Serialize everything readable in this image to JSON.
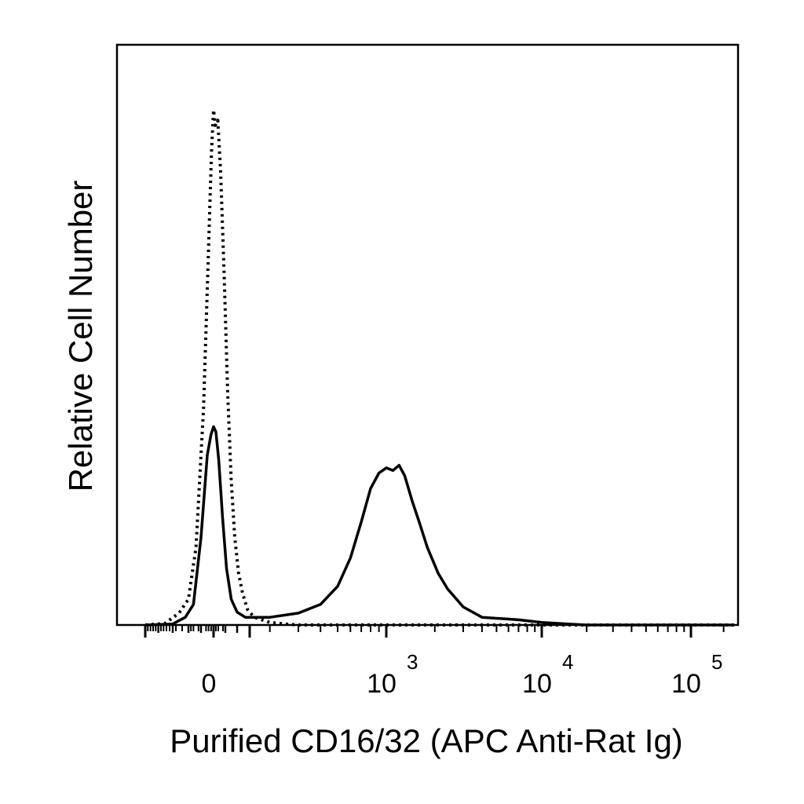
{
  "chart_data": {
    "type": "line",
    "xlabel": "Purified CD16/32 (APC Anti-Rat Ig)",
    "ylabel": "Relative Cell Number",
    "x_scale": "biexponential",
    "x_range": [
      -250,
      250000
    ],
    "y_range": [
      0,
      100
    ],
    "grid": false,
    "x_ticks": [
      {
        "base": "0",
        "exp": "",
        "value": 0
      },
      {
        "base": "10",
        "exp": "3",
        "value": 1000
      },
      {
        "base": "10",
        "exp": "4",
        "value": 10000
      },
      {
        "base": "10",
        "exp": "5",
        "value": 100000
      }
    ],
    "series": [
      {
        "style": "dotted",
        "color": "#000000",
        "points": [
          [
            -250,
            0
          ],
          [
            -175,
            0.3
          ],
          [
            -130,
            2.3
          ],
          [
            -100,
            5
          ],
          [
            -70,
            15
          ],
          [
            -40,
            42
          ],
          [
            -20,
            73
          ],
          [
            -8,
            92
          ],
          [
            0,
            100
          ],
          [
            8,
            97
          ],
          [
            18,
            98
          ],
          [
            30,
            88
          ],
          [
            45,
            68
          ],
          [
            60,
            45
          ],
          [
            75,
            28
          ],
          [
            90,
            17
          ],
          [
            105,
            10
          ],
          [
            120,
            6
          ],
          [
            140,
            3
          ],
          [
            160,
            1.5
          ],
          [
            200,
            0.5
          ],
          [
            250,
            0.2
          ],
          [
            300,
            0
          ],
          [
            1000,
            0
          ],
          [
            250000,
            0
          ]
        ]
      },
      {
        "style": "solid",
        "color": "#000000",
        "points": [
          [
            -250,
            0
          ],
          [
            -150,
            0.2
          ],
          [
            -110,
            1.5
          ],
          [
            -80,
            4
          ],
          [
            -50,
            17
          ],
          [
            -25,
            33
          ],
          [
            -10,
            37
          ],
          [
            0,
            38.5
          ],
          [
            10,
            37.5
          ],
          [
            22,
            32
          ],
          [
            38,
            21
          ],
          [
            55,
            11
          ],
          [
            75,
            5
          ],
          [
            100,
            2.5
          ],
          [
            130,
            1.5
          ],
          [
            200,
            1.5
          ],
          [
            300,
            2.3
          ],
          [
            400,
            4
          ],
          [
            500,
            7.5
          ],
          [
            600,
            13
          ],
          [
            700,
            20
          ],
          [
            800,
            26.5
          ],
          [
            900,
            29.5
          ],
          [
            1000,
            30.5
          ],
          [
            1100,
            30
          ],
          [
            1200,
            31
          ],
          [
            1300,
            29
          ],
          [
            1450,
            24
          ],
          [
            1600,
            20
          ],
          [
            1800,
            15
          ],
          [
            2100,
            10
          ],
          [
            2400,
            7
          ],
          [
            3000,
            3.5
          ],
          [
            4000,
            1.5
          ],
          [
            5000,
            1.3
          ],
          [
            7000,
            1
          ],
          [
            10000,
            0.5
          ],
          [
            15000,
            0.2
          ],
          [
            20000,
            0
          ],
          [
            250000,
            0
          ]
        ]
      }
    ]
  }
}
